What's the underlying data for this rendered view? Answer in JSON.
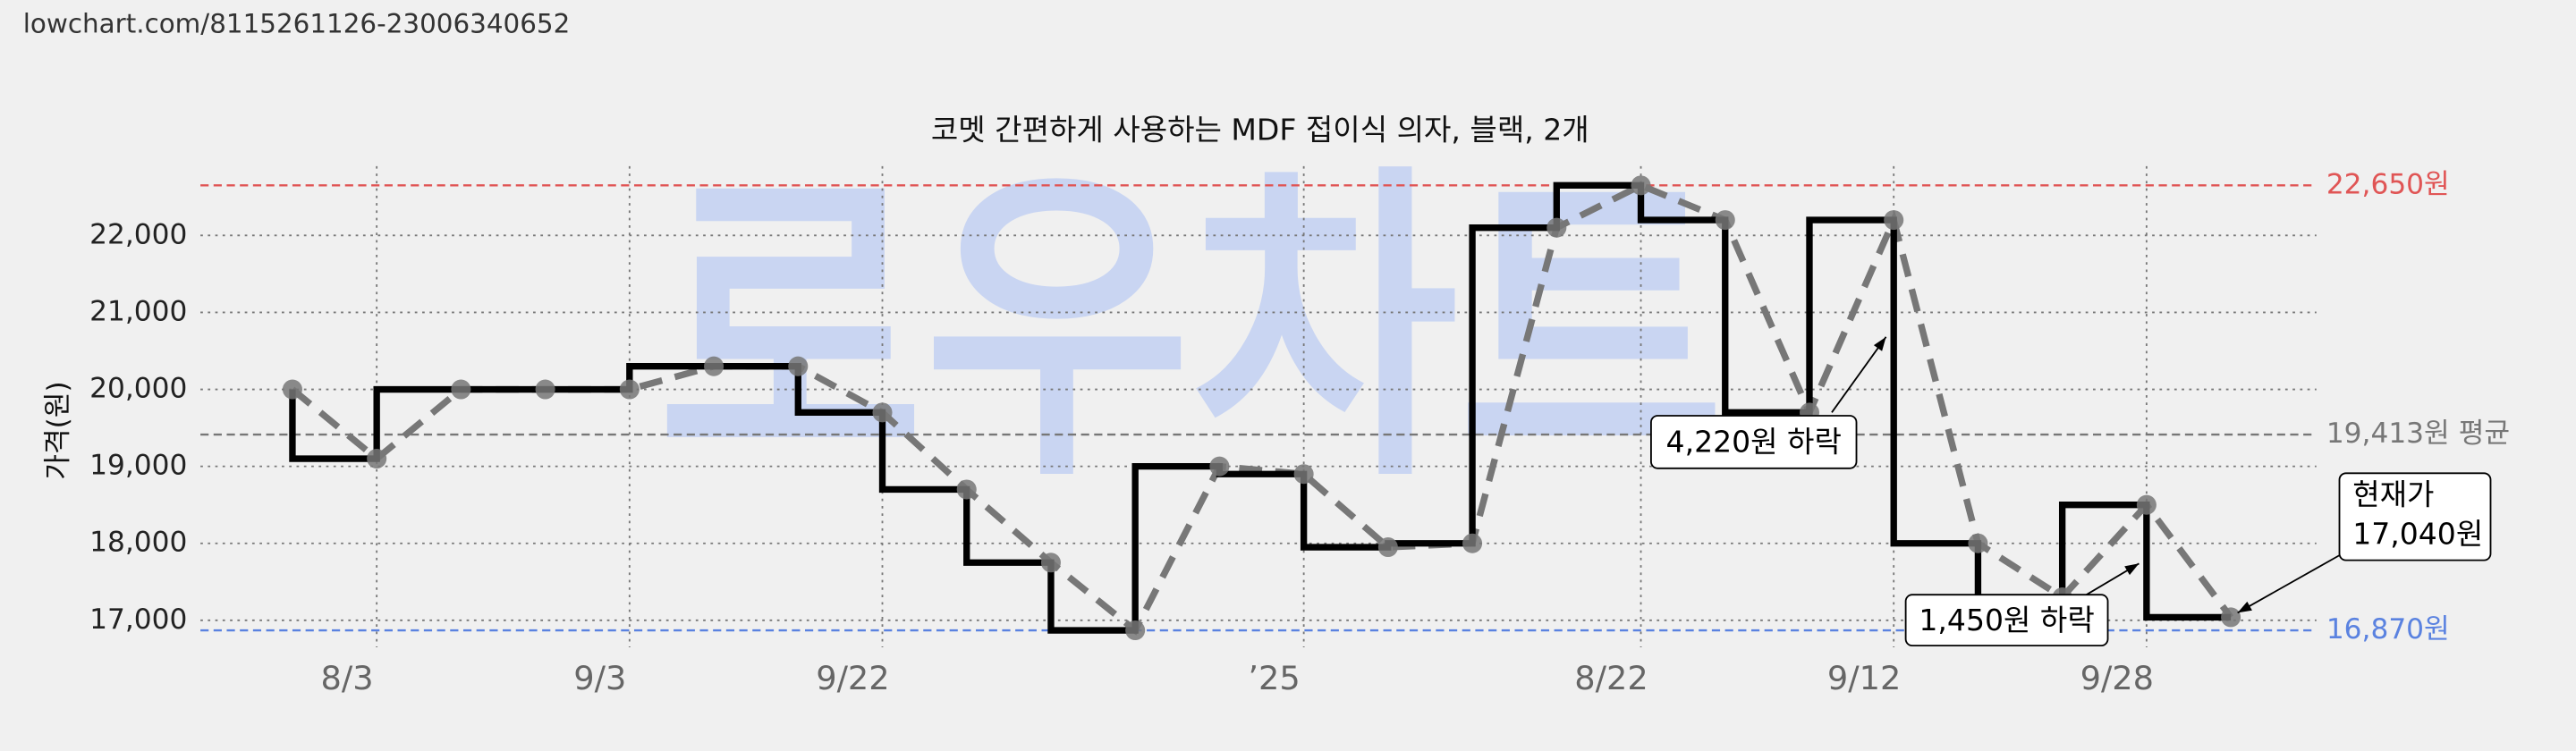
{
  "header": {
    "url": "lowchart.com/8115261126-23006340652"
  },
  "watermark": "로우차트",
  "chart_data": {
    "type": "line",
    "title": "코멧 간편하게 사용하는 MDF 접이식 의자, 블랙, 2개",
    "y_label": "가격(원)",
    "categories": [
      null,
      "8/3",
      null,
      null,
      "9/3",
      null,
      null,
      "9/22",
      null,
      null,
      null,
      null,
      "’25",
      null,
      null,
      null,
      "8/22",
      null,
      null,
      "9/12",
      null,
      null,
      "9/28",
      null
    ],
    "series": [
      {
        "name": "가격",
        "color": "#000000",
        "point_color": "#777777",
        "values": [
          20000,
          19100,
          20000,
          20000,
          20000,
          20300,
          20300,
          19700,
          18700,
          17750,
          16870,
          19000,
          18900,
          17950,
          18000,
          22100,
          22650,
          22200,
          19700,
          22200,
          18000,
          17300,
          18500,
          17040
        ]
      }
    ],
    "ylim": [
      16650,
      22900
    ],
    "yticks": [
      {
        "value": 17000,
        "label": "17,000"
      },
      {
        "value": 18000,
        "label": "18,000"
      },
      {
        "value": 19000,
        "label": "19,000"
      },
      {
        "value": 20000,
        "label": "20,000"
      },
      {
        "value": 21000,
        "label": "21,000"
      },
      {
        "value": 22000,
        "label": "22,000"
      }
    ],
    "grid": true,
    "reference_lines": [
      {
        "value": 22650,
        "label": "22,650원",
        "color": "#e05555"
      },
      {
        "value": 19413,
        "label": "19,413원 평균",
        "color": "#777777"
      },
      {
        "value": 16870,
        "label": "16,870원",
        "color": "#5a82e0"
      }
    ],
    "annotations": [
      {
        "text": "4,220원 하락"
      },
      {
        "text": "1,450원 하락"
      },
      {
        "text": [
          "현재가",
          "17,040원"
        ]
      }
    ]
  }
}
